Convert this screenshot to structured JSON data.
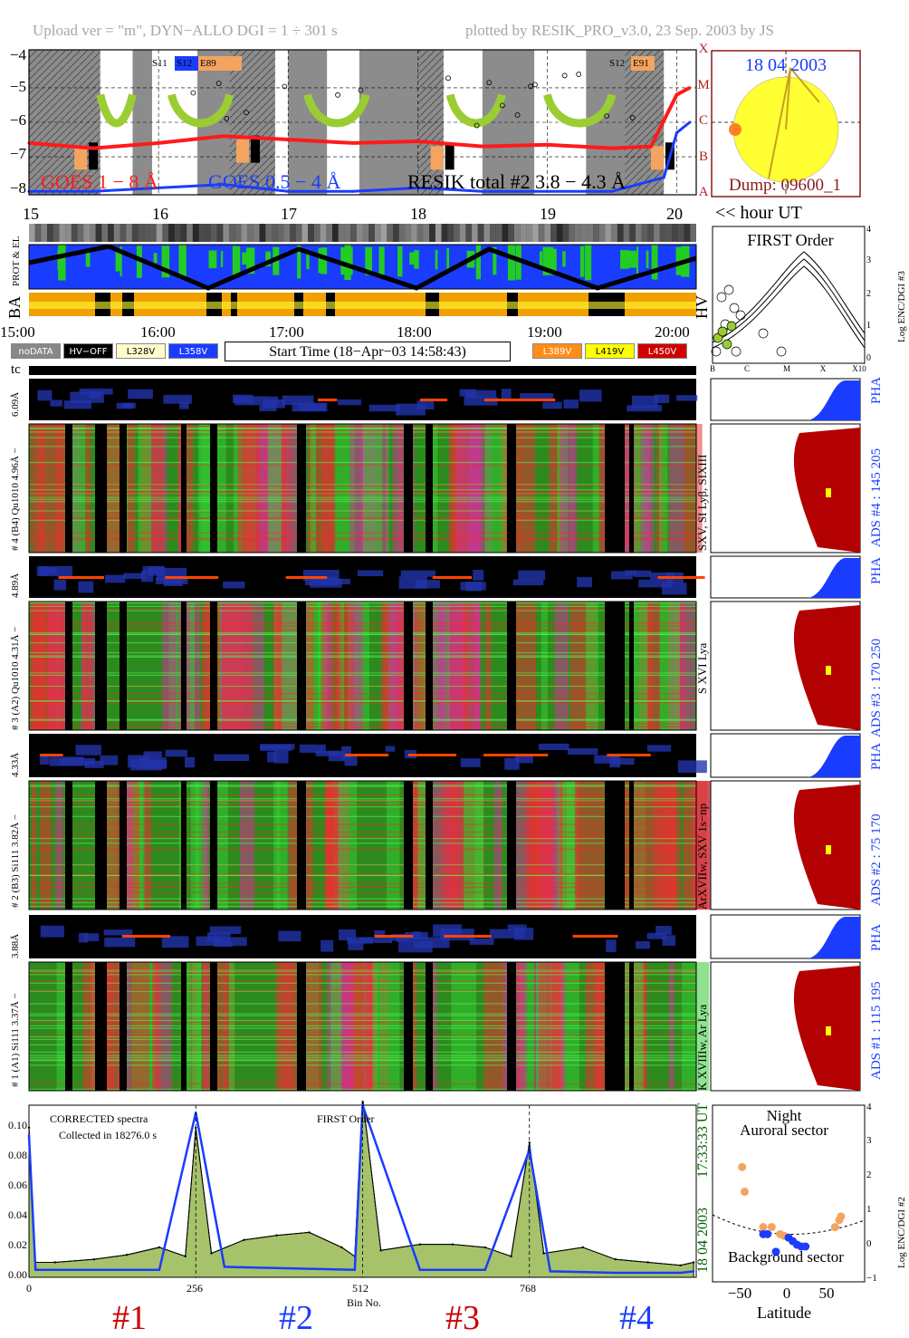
{
  "header": {
    "upload_text": "Upload ver = \"m\", DYN−ALLO DGI =   1 ÷ 301 s",
    "plotted_text": "plotted by RESIK_PRO_v3.0, 23 Sep. 2003 by JS"
  },
  "goes_panel": {
    "y_ticks": [
      "−4",
      "−5",
      "−6",
      "−7",
      "−8"
    ],
    "class_letters": [
      "X",
      "M",
      "C",
      "B",
      "A"
    ],
    "legend_goes18": "GOES 1 − 8 Å",
    "legend_goes054": "GOES 0.5 − 4 Å",
    "legend_resik": "RESIK total #2  3.8 − 4.3 Å",
    "tag_left_a": "S11",
    "tag_left_b": "S12",
    "tag_left_c": "E89",
    "tag_right_a": "S12",
    "tag_right_b": "E91",
    "x_ticks": [
      "15",
      "16",
      "17",
      "18",
      "19",
      "20"
    ],
    "hour_label": "<< hour UT",
    "colors": {
      "goes18": "#ff1a1a",
      "goes054": "#1a3cff",
      "resik": "#000000",
      "shade": "#8c8c8c",
      "flare": "#9acd32",
      "orange": "#f4a460"
    }
  },
  "sun_panel": {
    "date": "18 04 2003",
    "dump": "Dump: 09600_1",
    "sun_color": "#ffff33",
    "border_color": "#8b1a1a"
  },
  "orbit_panel": {
    "label_prot": "PROT & EL",
    "label_ba": "BA",
    "label_hv": "HV"
  },
  "time_axis": {
    "ticks": [
      "15:00",
      "16:00",
      "17:00",
      "18:00",
      "19:00",
      "20:00"
    ]
  },
  "legend_boxes": {
    "nodata": "noDATA",
    "hvoff": "HV−OFF",
    "l328": "L328V",
    "l358": "L358V",
    "start_time": "Start Time (18−Apr−03 14:58:43)",
    "l389": "L389V",
    "l419": "L419V",
    "l450": "L450V"
  },
  "first_order_panel": {
    "title": "FIRST Order",
    "ylabel": "Log ENC/DGI #3",
    "y_ticks": [
      "4",
      "3",
      "2",
      "1",
      "0"
    ],
    "x_ticks": [
      "B",
      "C",
      "M",
      "X",
      "X10"
    ]
  },
  "tc_label": "tc",
  "spectro_panels": [
    {
      "pha_label": "6.09Å",
      "main_label": "# 4 (B4) Qu1010 4.96Å −",
      "side_label": "SXV, SI Lyβ, SIXIII",
      "ads_label": "ADS #4 :   145 205",
      "pha_text": "PHA"
    },
    {
      "pha_label": "4.89Å",
      "main_label": "# 3 (A2) Qu1010 4.31Å −",
      "side_label": "S XVI Lya",
      "ads_label": "ADS #3 :   170 250",
      "pha_text": "PHA"
    },
    {
      "pha_label": "4.33Å",
      "main_label": "# 2 (B3) Si111 3.82Å −",
      "side_label": "ArXVIIw, SXV 1s−np",
      "ads_label": "ADS #2 :   75 170",
      "pha_text": "PHA"
    },
    {
      "pha_label": "3.88Å",
      "main_label": "# 1 (A1) Si111 3.37Å −",
      "side_label": "K XVIIIw, Ar Lya",
      "ads_label": "ADS #1 :   115 195",
      "pha_text": "PHA"
    }
  ],
  "spectrum_panel": {
    "title": "CORRECTED spectra",
    "collected": "Collected in 18276.0 s",
    "first_order": "FIRST Order",
    "y_ticks": [
      "0.10",
      "0.08",
      "0.06",
      "0.04",
      "0.02",
      "0.00"
    ],
    "x_ticks": [
      "0",
      "256",
      "512",
      "768"
    ],
    "xlabel": "Bin No.",
    "side_time": "17:33:33 UT",
    "side_date": "18 04 2003",
    "channels": [
      "#1",
      "#2",
      "#3",
      "#4"
    ]
  },
  "latitude_panel": {
    "night": "Night",
    "auroral": "Auroral sector",
    "background": "Background sector",
    "ylabel": "Log ENC/DGI #2",
    "y_ticks": [
      "4",
      "3",
      "2",
      "1",
      "0",
      "−1"
    ],
    "x_ticks": [
      "−50",
      "0",
      "50"
    ],
    "xlabel": "Latitude"
  },
  "chart_data": [
    {
      "type": "line",
      "title": "",
      "xlabel": "",
      "ylabel": "",
      "xlim": [
        15,
        20.15
      ],
      "ylim": [
        -8.1,
        -3.9
      ],
      "series": [
        {
          "name": "GOES 1 − 8 Å",
          "x": [
            15.0,
            15.5,
            16.0,
            16.5,
            17.0,
            17.5,
            18.0,
            18.5,
            19.0,
            19.5,
            19.8,
            20.0,
            20.1
          ],
          "y": [
            -6.6,
            -6.75,
            -6.6,
            -6.4,
            -6.5,
            -6.6,
            -6.55,
            -6.7,
            -6.65,
            -6.75,
            -6.7,
            -5.2,
            -5.0
          ]
        },
        {
          "name": "GOES 0.5 − 4 Å",
          "x": [
            15.0,
            15.5,
            16.0,
            16.5,
            17.0,
            17.5,
            18.0,
            18.5,
            19.0,
            19.5,
            19.9,
            20.0,
            20.1
          ],
          "y": [
            -8.0,
            -8.0,
            -7.9,
            -7.8,
            -8.0,
            -8.0,
            -7.9,
            -8.0,
            -8.0,
            -8.0,
            -7.6,
            -6.3,
            -6.0
          ]
        }
      ]
    },
    {
      "type": "line",
      "title": "CORRECTED spectra",
      "xlabel": "Bin No.",
      "ylabel": "",
      "xlim": [
        0,
        1024
      ],
      "ylim": [
        0,
        0.115
      ],
      "series": [
        {
          "name": "CORRECTED spectra",
          "x": [
            0,
            10,
            40,
            100,
            150,
            200,
            240,
            256,
            280,
            330,
            380,
            430,
            480,
            500,
            512,
            540,
            600,
            650,
            700,
            740,
            768,
            790,
            850,
            900,
            950,
            1000,
            1020
          ],
          "y": [
            0.1,
            0.01,
            0.01,
            0.012,
            0.015,
            0.02,
            0.014,
            0.1,
            0.016,
            0.025,
            0.028,
            0.03,
            0.02,
            0.014,
            0.12,
            0.018,
            0.022,
            0.022,
            0.02,
            0.014,
            0.09,
            0.016,
            0.02,
            0.012,
            0.01,
            0.008,
            0.01
          ]
        },
        {
          "name": "",
          "x": [
            0,
            10,
            100,
            200,
            256,
            300,
            400,
            500,
            512,
            600,
            700,
            768,
            800,
            900,
            1000,
            1020
          ],
          "y": [
            0.095,
            0.005,
            0.005,
            0.005,
            0.11,
            0.007,
            0.006,
            0.005,
            0.115,
            0.005,
            0.005,
            0.085,
            0.004,
            0.003,
            0.003,
            0.004
          ]
        }
      ]
    },
    {
      "type": "scatter",
      "title": "",
      "xlabel": "Latitude",
      "ylabel": "Log ENC/DGI #2",
      "xlim": [
        -90,
        90
      ],
      "ylim": [
        -1,
        4
      ],
      "series": [
        {
          "name": "Auroral sector",
          "x": [
            -55,
            -52,
            -30,
            -20,
            -10,
            -5,
            55,
            60,
            62
          ],
          "y": [
            2.25,
            1.55,
            0.55,
            0.55,
            0.35,
            0.3,
            0.55,
            0.75,
            0.85
          ]
        },
        {
          "name": "Background sector",
          "x": [
            -30,
            -25,
            -15,
            0,
            5,
            10,
            15,
            20
          ],
          "y": [
            0.35,
            0.35,
            -0.15,
            0.25,
            0.15,
            0.05,
            0.0,
            0.0
          ]
        }
      ]
    }
  ]
}
